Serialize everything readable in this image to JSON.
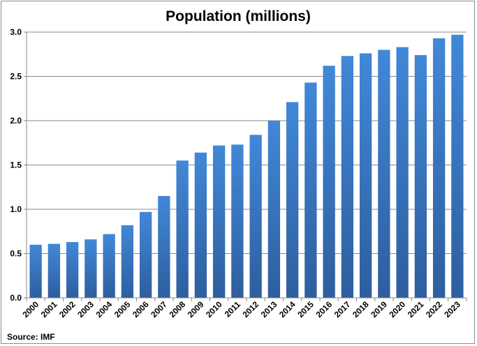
{
  "chart_data": {
    "type": "bar",
    "title": "Population (millions)",
    "xlabel": "",
    "ylabel": "",
    "categories": [
      "2000",
      "2001",
      "2002",
      "2003",
      "2004",
      "2005",
      "2006",
      "2007",
      "2008",
      "2009",
      "2010",
      "2011",
      "2012",
      "2013",
      "2014",
      "2015",
      "2016",
      "2017",
      "2018",
      "2019",
      "2020",
      "2021",
      "2022",
      "2023"
    ],
    "values": [
      0.6,
      0.61,
      0.63,
      0.66,
      0.72,
      0.82,
      0.97,
      1.15,
      1.55,
      1.64,
      1.72,
      1.73,
      1.84,
      2.0,
      2.21,
      2.43,
      2.62,
      2.73,
      2.76,
      2.8,
      2.83,
      2.74,
      2.93,
      2.97
    ],
    "ylim": [
      0,
      3.0
    ],
    "yticks": [
      "0.0",
      "0.5",
      "1.0",
      "1.5",
      "2.0",
      "2.5",
      "3.0"
    ],
    "grid": true,
    "bar_color": "#3b78c8",
    "source": "Source: IMF"
  }
}
